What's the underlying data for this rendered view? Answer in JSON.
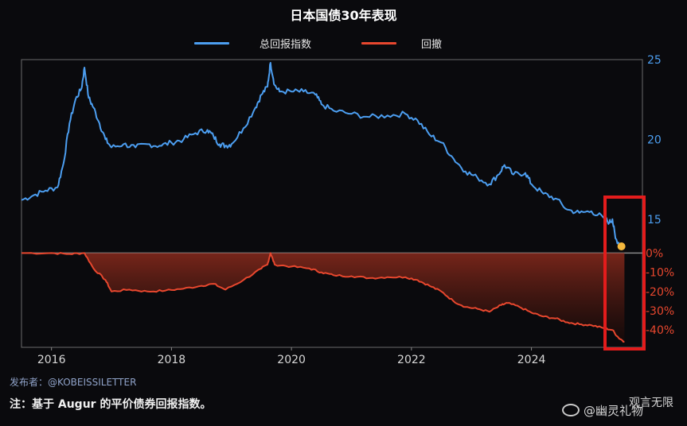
{
  "chart_data": {
    "type": "line",
    "title": "日本国债30年表现",
    "x_ticks": [
      "2016",
      "2018",
      "2020",
      "2022",
      "2024"
    ],
    "xlim": [
      2015.5,
      2025.85
    ],
    "panels": [
      {
        "series_name": "总回报指数",
        "color": "#4c9ef0",
        "ylim": [
          13,
          25
        ],
        "y_ticks": [
          15,
          20,
          25
        ],
        "points": [
          [
            2015.5,
            16.2
          ],
          [
            2015.7,
            16.5
          ],
          [
            2015.9,
            16.8
          ],
          [
            2016.1,
            17.0
          ],
          [
            2016.2,
            18.5
          ],
          [
            2016.3,
            21.0
          ],
          [
            2016.4,
            22.5
          ],
          [
            2016.5,
            23.2
          ],
          [
            2016.55,
            24.5
          ],
          [
            2016.62,
            22.6
          ],
          [
            2016.7,
            22.0
          ],
          [
            2016.8,
            21.0
          ],
          [
            2016.9,
            20.0
          ],
          [
            2017.0,
            19.5
          ],
          [
            2017.2,
            19.7
          ],
          [
            2017.4,
            19.5
          ],
          [
            2017.6,
            19.7
          ],
          [
            2017.8,
            19.6
          ],
          [
            2018.0,
            19.8
          ],
          [
            2018.2,
            20.0
          ],
          [
            2018.4,
            20.4
          ],
          [
            2018.6,
            20.6
          ],
          [
            2018.7,
            20.2
          ],
          [
            2018.8,
            19.7
          ],
          [
            2018.9,
            19.6
          ],
          [
            2019.0,
            19.7
          ],
          [
            2019.2,
            20.7
          ],
          [
            2019.4,
            22.0
          ],
          [
            2019.5,
            22.8
          ],
          [
            2019.6,
            23.3
          ],
          [
            2019.65,
            24.8
          ],
          [
            2019.72,
            23.4
          ],
          [
            2019.8,
            23.0
          ],
          [
            2020.0,
            23.0
          ],
          [
            2020.2,
            23.0
          ],
          [
            2020.4,
            22.8
          ],
          [
            2020.5,
            22.2
          ],
          [
            2020.7,
            21.8
          ],
          [
            2021.0,
            21.6
          ],
          [
            2021.3,
            21.4
          ],
          [
            2021.6,
            21.5
          ],
          [
            2021.9,
            21.6
          ],
          [
            2022.1,
            21.2
          ],
          [
            2022.3,
            20.3
          ],
          [
            2022.5,
            19.8
          ],
          [
            2022.7,
            18.8
          ],
          [
            2022.9,
            18.0
          ],
          [
            2023.1,
            17.6
          ],
          [
            2023.3,
            17.2
          ],
          [
            2023.45,
            17.8
          ],
          [
            2023.55,
            18.4
          ],
          [
            2023.7,
            17.8
          ],
          [
            2023.9,
            17.9
          ],
          [
            2024.0,
            17.2
          ],
          [
            2024.2,
            16.6
          ],
          [
            2024.4,
            16.3
          ],
          [
            2024.6,
            15.6
          ],
          [
            2024.8,
            15.4
          ],
          [
            2025.0,
            15.5
          ],
          [
            2025.2,
            15.1
          ],
          [
            2025.3,
            14.8
          ],
          [
            2025.35,
            15.0
          ],
          [
            2025.4,
            13.8
          ],
          [
            2025.5,
            13.3
          ]
        ],
        "marker": {
          "x": 2025.5,
          "y": 13.3,
          "color": "#f5b83d"
        }
      },
      {
        "series_name": "回撤",
        "color": "#e8472e",
        "ylim": [
          -49,
          1
        ],
        "y_ticks": [
          "0%",
          "-10%",
          "-20%",
          "-30%",
          "-40%"
        ],
        "y_tick_values": [
          0,
          -10,
          -20,
          -30,
          -40
        ],
        "points": [
          [
            2015.5,
            0
          ],
          [
            2016.0,
            0
          ],
          [
            2016.3,
            -0.5
          ],
          [
            2016.55,
            0
          ],
          [
            2016.7,
            -8
          ],
          [
            2016.9,
            -14
          ],
          [
            2017.0,
            -20
          ],
          [
            2017.3,
            -19
          ],
          [
            2017.6,
            -20
          ],
          [
            2017.9,
            -19.5
          ],
          [
            2018.2,
            -18.5
          ],
          [
            2018.5,
            -17
          ],
          [
            2018.7,
            -16
          ],
          [
            2018.9,
            -19
          ],
          [
            2019.2,
            -14
          ],
          [
            2019.5,
            -8
          ],
          [
            2019.6,
            -6
          ],
          [
            2019.65,
            0
          ],
          [
            2019.72,
            -6
          ],
          [
            2020.0,
            -7
          ],
          [
            2020.3,
            -8
          ],
          [
            2020.5,
            -10
          ],
          [
            2020.7,
            -11.5
          ],
          [
            2021.0,
            -12
          ],
          [
            2021.3,
            -13
          ],
          [
            2021.6,
            -12.5
          ],
          [
            2021.9,
            -12.5
          ],
          [
            2022.1,
            -14
          ],
          [
            2022.3,
            -17
          ],
          [
            2022.5,
            -20
          ],
          [
            2022.7,
            -25
          ],
          [
            2022.9,
            -28
          ],
          [
            2023.1,
            -29
          ],
          [
            2023.3,
            -30.5
          ],
          [
            2023.5,
            -27
          ],
          [
            2023.6,
            -26
          ],
          [
            2023.8,
            -28
          ],
          [
            2024.0,
            -31
          ],
          [
            2024.2,
            -33
          ],
          [
            2024.4,
            -34
          ],
          [
            2024.6,
            -36
          ],
          [
            2024.8,
            -37
          ],
          [
            2025.0,
            -37.5
          ],
          [
            2025.2,
            -39
          ],
          [
            2025.35,
            -40
          ],
          [
            2025.45,
            -44
          ],
          [
            2025.55,
            -46
          ]
        ]
      }
    ]
  },
  "legend": {
    "series1": "总回报指数",
    "series2": "回撤"
  },
  "footer": {
    "source": "发布者：@KOBEISSILETTER",
    "note": "注：基于 Augur 的平价债券回报指数。",
    "watermark_top": "观言无限",
    "watermark_bottom": "@幽灵礼物"
  },
  "colors": {
    "background": "#0a0a0d",
    "blue": "#4c9ef0",
    "red": "#e8472e",
    "highlight_box": "#e31c1c",
    "marker": "#f5b83d"
  }
}
